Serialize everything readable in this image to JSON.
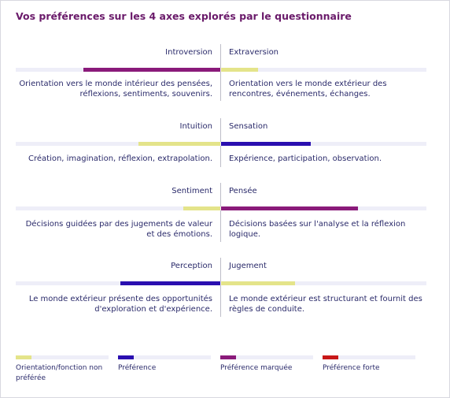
{
  "title": "Vos préférences sur les 4 axes explorés par le questionnaire",
  "colors": {
    "track": "#eeeef8",
    "non_preferred": "#e4e48a",
    "preference": "#2a0fb0",
    "marked": "#8a1a7a",
    "strong": "#c81818"
  },
  "axes": [
    {
      "left_label": "Introversion",
      "right_label": "Extraversion",
      "left_fill": 0.67,
      "left_level": "marked",
      "right_fill": 0.18,
      "right_level": "non_preferred",
      "left_desc": "Orientation vers le monde intérieur des pensées, réflexions, sentiments, souvenirs.",
      "right_desc": "Orientation vers le monde extérieur des rencontres, événements, échanges."
    },
    {
      "left_label": "Intuition",
      "right_label": "Sensation",
      "left_fill": 0.4,
      "left_level": "non_preferred",
      "right_fill": 0.44,
      "right_level": "preference",
      "left_desc": "Création, imagination, réflexion, extrapolation.",
      "right_desc": "Expérience, participation, observation."
    },
    {
      "left_label": "Sentiment",
      "right_label": "Pensée",
      "left_fill": 0.18,
      "left_level": "non_preferred",
      "right_fill": 0.67,
      "right_level": "marked",
      "left_desc": "Décisions guidées par des jugements de valeur et des émotions.",
      "right_desc": "Décisions basées sur l'analyse et la réflexion logique."
    },
    {
      "left_label": "Perception",
      "right_label": "Jugement",
      "left_fill": 0.49,
      "left_level": "preference",
      "right_fill": 0.36,
      "right_level": "non_preferred",
      "left_desc": "Le monde extérieur présente des opportunités d'exploration et d'expérience.",
      "right_desc": "Le monde extérieur est structurant et fournit des règles de conduite."
    }
  ],
  "legend": [
    {
      "level": "non_preferred",
      "label": "Orientation/fonction non préférée"
    },
    {
      "level": "preference",
      "label": "Préférence"
    },
    {
      "level": "marked",
      "label": "Préférence marquée"
    },
    {
      "level": "strong",
      "label": "Préférence forte"
    }
  ]
}
